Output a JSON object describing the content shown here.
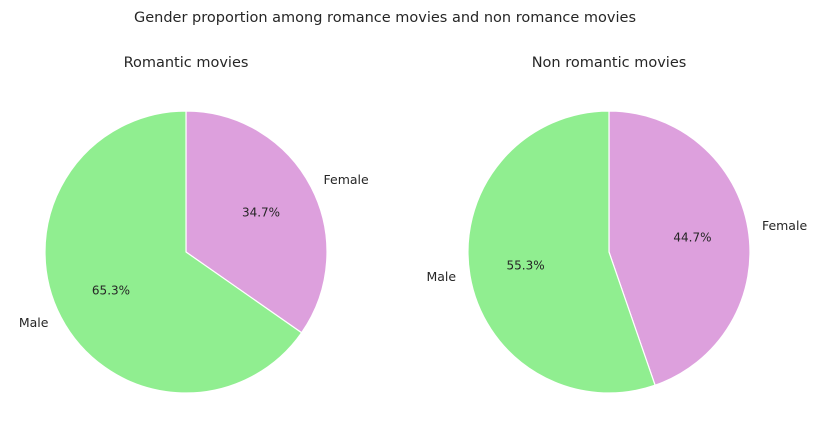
{
  "chart_data": {
    "suptitle": "Gender proportion among romance movies and non romance movies",
    "charts": [
      {
        "type": "pie",
        "title": "Romantic movies",
        "slices": [
          {
            "label": "Female",
            "value": 34.7,
            "pct_label": "34.7%",
            "color": "#dda0dd"
          },
          {
            "label": "Male",
            "value": 65.3,
            "pct_label": "65.3%",
            "color": "#90ee90"
          }
        ],
        "start_angle_deg": 90,
        "direction": "clockwise"
      },
      {
        "type": "pie",
        "title": "Non romantic movies",
        "slices": [
          {
            "label": "Female",
            "value": 44.7,
            "pct_label": "44.7%",
            "color": "#dda0dd"
          },
          {
            "label": "Male",
            "value": 55.3,
            "pct_label": "55.3%",
            "color": "#90ee90"
          }
        ],
        "start_angle_deg": 90,
        "direction": "clockwise"
      }
    ]
  }
}
